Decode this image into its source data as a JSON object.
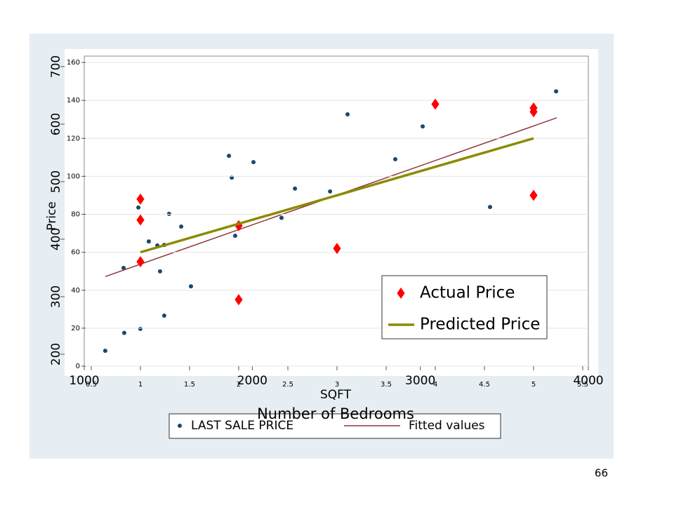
{
  "chart_data": [
    {
      "type": "scatter",
      "xlabel": "SQFT",
      "ylabel": "Price",
      "xlim": [
        1000,
        4000
      ],
      "xticks": [
        1000,
        2000,
        3000,
        4000
      ],
      "ylim": [
        200,
        700
      ],
      "yticks": [
        200,
        300,
        400,
        500,
        600,
        700
      ],
      "legend": "bottom",
      "series": [
        {
          "name": "LAST SALE PRICE",
          "color": "#1a476f",
          "marker": "circle",
          "x": [
            1125,
            1238,
            1234,
            1322,
            1334,
            1384,
            1435,
            1476,
            1451,
            1476,
            1505,
            1577,
            1635,
            1861,
            1878,
            1898,
            2007,
            2174,
            2254,
            2463,
            2567,
            2851,
            3014,
            3415,
            3808
          ],
          "values": [
            206,
            237,
            350,
            455,
            244,
            396,
            389,
            390,
            344,
            267,
            444,
            422,
            318,
            545,
            507,
            406,
            534,
            437,
            488,
            483,
            617,
            539,
            596,
            456,
            657
          ]
        },
        {
          "name": "Fitted values",
          "color": "#90353b",
          "marker": "line",
          "x": [
            1125,
            3812
          ],
          "values": [
            335,
            611
          ]
        }
      ]
    },
    {
      "type": "scatter",
      "xlabel": "Number of Bedrooms",
      "xlim": [
        0.5,
        5.5
      ],
      "xticks": [
        0.5,
        1,
        1.5,
        2,
        2.5,
        3,
        3.5,
        4,
        4.5,
        5,
        5.5
      ],
      "ylim": [
        0,
        160
      ],
      "yticks": [
        0,
        20,
        40,
        60,
        80,
        100,
        120,
        140,
        160
      ],
      "legend": "lower right",
      "series": [
        {
          "name": "Actual Price",
          "color": "#ff0000",
          "marker": "diamond",
          "x": [
            1,
            1,
            1,
            2,
            2,
            3,
            4,
            5,
            5,
            5
          ],
          "values": [
            88,
            77,
            55,
            74,
            35,
            62,
            138,
            136,
            134,
            90
          ]
        },
        {
          "name": "Predicted Price",
          "color": "#8b8b00",
          "marker": "line",
          "x": [
            1,
            5
          ],
          "values": [
            60,
            120
          ]
        }
      ]
    }
  ],
  "page_number": "66"
}
